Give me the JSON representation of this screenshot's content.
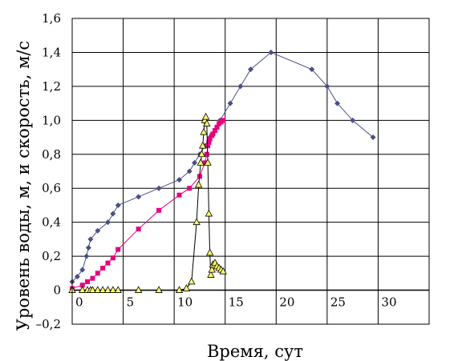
{
  "chart_data": {
    "type": "line",
    "xlabel": "Время, сут",
    "ylabel": "Уровень воды, м, и  скорость, м/с",
    "xlim": [
      0,
      35
    ],
    "ylim": [
      -0.2,
      1.6
    ],
    "xticks": [
      0,
      5,
      10,
      15,
      20,
      25,
      30
    ],
    "yticks": [
      -0.2,
      0,
      0.2,
      0.4,
      0.6,
      0.8,
      1.0,
      1.2,
      1.4,
      1.6
    ],
    "ytick_labels": [
      "–0,2",
      "0",
      "0,2",
      "0,4",
      "0,6",
      "0,8",
      "1,0",
      "1,2",
      "1,4",
      "1,6"
    ],
    "grid": true,
    "series": [
      {
        "color": "#4b4f86",
        "marker": "diamond",
        "points": [
          [
            0,
            0.05
          ],
          [
            0.5,
            0.08
          ],
          [
            1,
            0.12
          ],
          [
            1.4,
            0.2
          ],
          [
            1.6,
            0.25
          ],
          [
            1.8,
            0.3
          ],
          [
            2.5,
            0.35
          ],
          [
            3.5,
            0.4
          ],
          [
            4,
            0.45
          ],
          [
            4.5,
            0.5
          ],
          [
            6.5,
            0.55
          ],
          [
            8.5,
            0.6
          ],
          [
            10.5,
            0.65
          ],
          [
            11.5,
            0.7
          ],
          [
            12,
            0.75
          ],
          [
            12.5,
            0.8
          ],
          [
            13,
            0.85
          ],
          [
            13.5,
            0.9
          ],
          [
            14.5,
            1.0
          ],
          [
            15.5,
            1.1
          ],
          [
            16.5,
            1.2
          ],
          [
            17.5,
            1.3
          ],
          [
            19.5,
            1.4
          ],
          [
            23.5,
            1.3
          ],
          [
            25,
            1.2
          ],
          [
            26,
            1.1
          ],
          [
            27.5,
            1.0
          ],
          [
            29.5,
            0.9
          ]
        ]
      },
      {
        "color": "#e6007e",
        "marker": "square",
        "points": [
          [
            0,
            0.01
          ],
          [
            1,
            0.03
          ],
          [
            1.5,
            0.05
          ],
          [
            2,
            0.07
          ],
          [
            2.5,
            0.1
          ],
          [
            3,
            0.13
          ],
          [
            3.5,
            0.16
          ],
          [
            4,
            0.19
          ],
          [
            4.5,
            0.24
          ],
          [
            6.5,
            0.36
          ],
          [
            8.5,
            0.47
          ],
          [
            10.5,
            0.56
          ],
          [
            11.5,
            0.6
          ],
          [
            12.5,
            0.67
          ],
          [
            13,
            0.75
          ],
          [
            13.2,
            0.8
          ],
          [
            13.3,
            0.85
          ],
          [
            13.4,
            0.87
          ],
          [
            13.5,
            0.89
          ],
          [
            13.7,
            0.91
          ],
          [
            13.8,
            0.92
          ],
          [
            14,
            0.94
          ],
          [
            14.2,
            0.96
          ],
          [
            14.4,
            0.98
          ],
          [
            14.6,
            0.99
          ],
          [
            14.8,
            1.0
          ]
        ]
      },
      {
        "color": "#000000",
        "marker": "triangle",
        "marker_fill": "#ffff66",
        "points": [
          [
            0,
            0
          ],
          [
            1,
            0
          ],
          [
            1.5,
            0
          ],
          [
            1.8,
            0
          ],
          [
            2,
            0
          ],
          [
            2.5,
            0
          ],
          [
            3,
            0
          ],
          [
            3.5,
            0
          ],
          [
            4,
            0
          ],
          [
            4.5,
            0
          ],
          [
            6.5,
            0
          ],
          [
            8.5,
            0
          ],
          [
            10.5,
            0
          ],
          [
            11.2,
            0.01
          ],
          [
            11.7,
            0.05
          ],
          [
            12.2,
            0.4
          ],
          [
            12.4,
            0.62
          ],
          [
            12.6,
            0.75
          ],
          [
            12.7,
            0.8
          ],
          [
            12.8,
            0.85
          ],
          [
            12.9,
            0.93
          ],
          [
            13,
            1.0
          ],
          [
            13.1,
            1.02
          ],
          [
            13.2,
            0.98
          ],
          [
            13.3,
            0.75
          ],
          [
            13.4,
            0.45
          ],
          [
            13.5,
            0.22
          ],
          [
            13.6,
            0.09
          ],
          [
            13.7,
            0.12
          ],
          [
            13.8,
            0.15
          ],
          [
            14,
            0.16
          ],
          [
            14.2,
            0.14
          ],
          [
            14.4,
            0.13
          ],
          [
            14.6,
            0.12
          ],
          [
            14.8,
            0.11
          ]
        ]
      }
    ]
  }
}
